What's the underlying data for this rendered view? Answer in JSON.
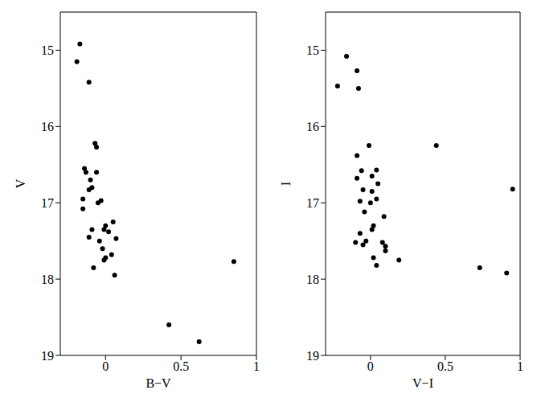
{
  "chart_data": [
    {
      "type": "scatter",
      "x_label": "B−V",
      "y_label": "V",
      "color": "#000000",
      "xlim": [
        -0.3,
        1
      ],
      "xticks": [
        0,
        0.5,
        1
      ],
      "ylim": [
        14.5,
        19
      ],
      "yticks": [
        15,
        16,
        17,
        18,
        19
      ],
      "grid": false,
      "marker": "circle",
      "x": [
        -0.17,
        -0.19,
        -0.11,
        -0.07,
        -0.06,
        -0.14,
        -0.13,
        -0.06,
        -0.1,
        -0.09,
        -0.11,
        -0.15,
        -0.03,
        -0.05,
        -0.15,
        0.05,
        0,
        -0.01,
        -0.09,
        0.02,
        -0.11,
        -0.04,
        0.07,
        -0.02,
        0.04,
        0,
        -0.01,
        -0.08,
        0.06,
        0.85,
        0.42,
        0.62
      ],
      "values": [
        14.92,
        15.15,
        15.42,
        16.22,
        16.27,
        16.55,
        16.6,
        16.6,
        16.7,
        16.8,
        16.83,
        16.95,
        16.97,
        17.0,
        17.08,
        17.25,
        17.3,
        17.35,
        17.35,
        17.38,
        17.45,
        17.5,
        17.47,
        17.6,
        17.68,
        17.72,
        17.75,
        17.85,
        17.95,
        17.77,
        18.6,
        18.82
      ]
    },
    {
      "type": "scatter",
      "x_label": "V−I",
      "y_label": "I",
      "color": "#000000",
      "xlim": [
        -0.3,
        1
      ],
      "xticks": [
        0,
        0.5,
        1
      ],
      "ylim": [
        14.5,
        19
      ],
      "yticks": [
        15,
        16,
        17,
        18,
        19
      ],
      "grid": false,
      "marker": "circle",
      "x": [
        -0.16,
        -0.22,
        -0.09,
        -0.08,
        0.44,
        -0.01,
        -0.09,
        -0.06,
        0.04,
        0.01,
        -0.09,
        0.05,
        -0.05,
        0.01,
        -0.07,
        0.04,
        0,
        -0.04,
        0.09,
        0.02,
        0.01,
        -0.07,
        -0.03,
        -0.05,
        -0.1,
        0.08,
        0.1,
        0.1,
        0.19,
        0.02,
        0.04,
        0.73,
        0.91,
        0.95
      ],
      "values": [
        15.08,
        15.47,
        15.27,
        15.5,
        16.25,
        16.25,
        16.38,
        16.58,
        16.57,
        16.65,
        16.68,
        16.75,
        16.83,
        16.85,
        16.98,
        16.95,
        17.0,
        17.12,
        17.18,
        17.3,
        17.35,
        17.4,
        17.5,
        17.55,
        17.52,
        17.52,
        17.57,
        17.63,
        17.75,
        17.72,
        17.82,
        17.85,
        17.92,
        16.82
      ]
    }
  ]
}
